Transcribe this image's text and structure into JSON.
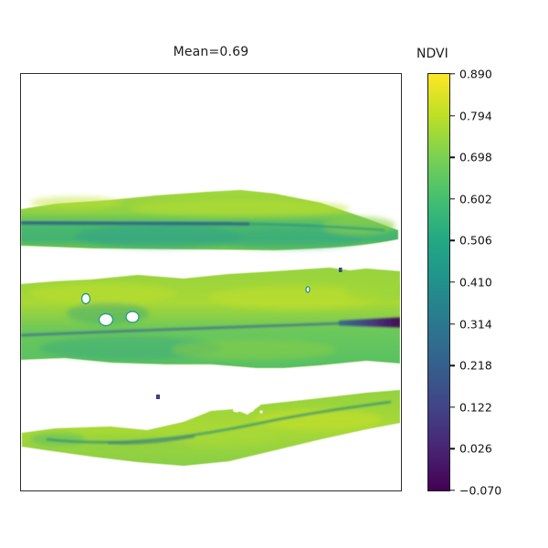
{
  "figure": {
    "title": "Mean=0.69",
    "background_color": "#ffffff"
  },
  "colorbar": {
    "label": "NDVI",
    "tick_labels": [
      "0.890",
      "0.794",
      "0.698",
      "0.602",
      "0.506",
      "0.410",
      "0.314",
      "0.218",
      "0.122",
      "0.026",
      "−0.070"
    ]
  },
  "chart_data": {
    "type": "heatmap",
    "title": "Mean=0.69",
    "colorbar_label": "NDVI",
    "colormap": "viridis",
    "vmin": -0.07,
    "vmax": 0.89,
    "colorbar_ticks": [
      0.89,
      0.794,
      0.698,
      0.602,
      0.506,
      0.41,
      0.314,
      0.218,
      0.122,
      0.026,
      -0.07
    ],
    "mean_value": 0.69,
    "axes": {
      "x_ticks": [],
      "y_ticks": [],
      "frame_on": true
    },
    "legend": "none",
    "description": "False-color NDVI raster of three horizontal leaf segments on a white background inside a plain frame; mean NDVI of mapped pixels is 0.69.",
    "regions": [
      {
        "name": "top-leaf",
        "approx_ndvi_range": [
          0.45,
          0.78
        ],
        "features": [
          "dark blue midrib line (~0.2 NDVI) along left two-thirds",
          "teal-green band below midrib",
          "tapers to a tip at right frame edge"
        ]
      },
      {
        "name": "middle-leaf",
        "approx_ndvi_range": [
          0.5,
          0.8
        ],
        "features": [
          "three white holes (masked pixels) at left-center",
          "one tiny white hole right-center",
          "dark midrib thickening into a dark purple streak (~0.0 NDVI) at the right end",
          "small dark blue speck above leaf"
        ]
      },
      {
        "name": "bottom-leaf",
        "approx_ndvi_range": [
          0.55,
          0.8
        ],
        "features": [
          "curved dark green-teal midrib (~0.35 NDVI)",
          "yellow-green patches on right half",
          "small dark blue speck above leaf",
          "tiny white notches at top bump"
        ]
      }
    ],
    "colors": {
      "vmin_color": "#440154",
      "mid_color": "#21918c",
      "vmax_color": "#fde725",
      "leaf_base_green": "#8ed144",
      "midrib_blue": "#31688e"
    }
  }
}
